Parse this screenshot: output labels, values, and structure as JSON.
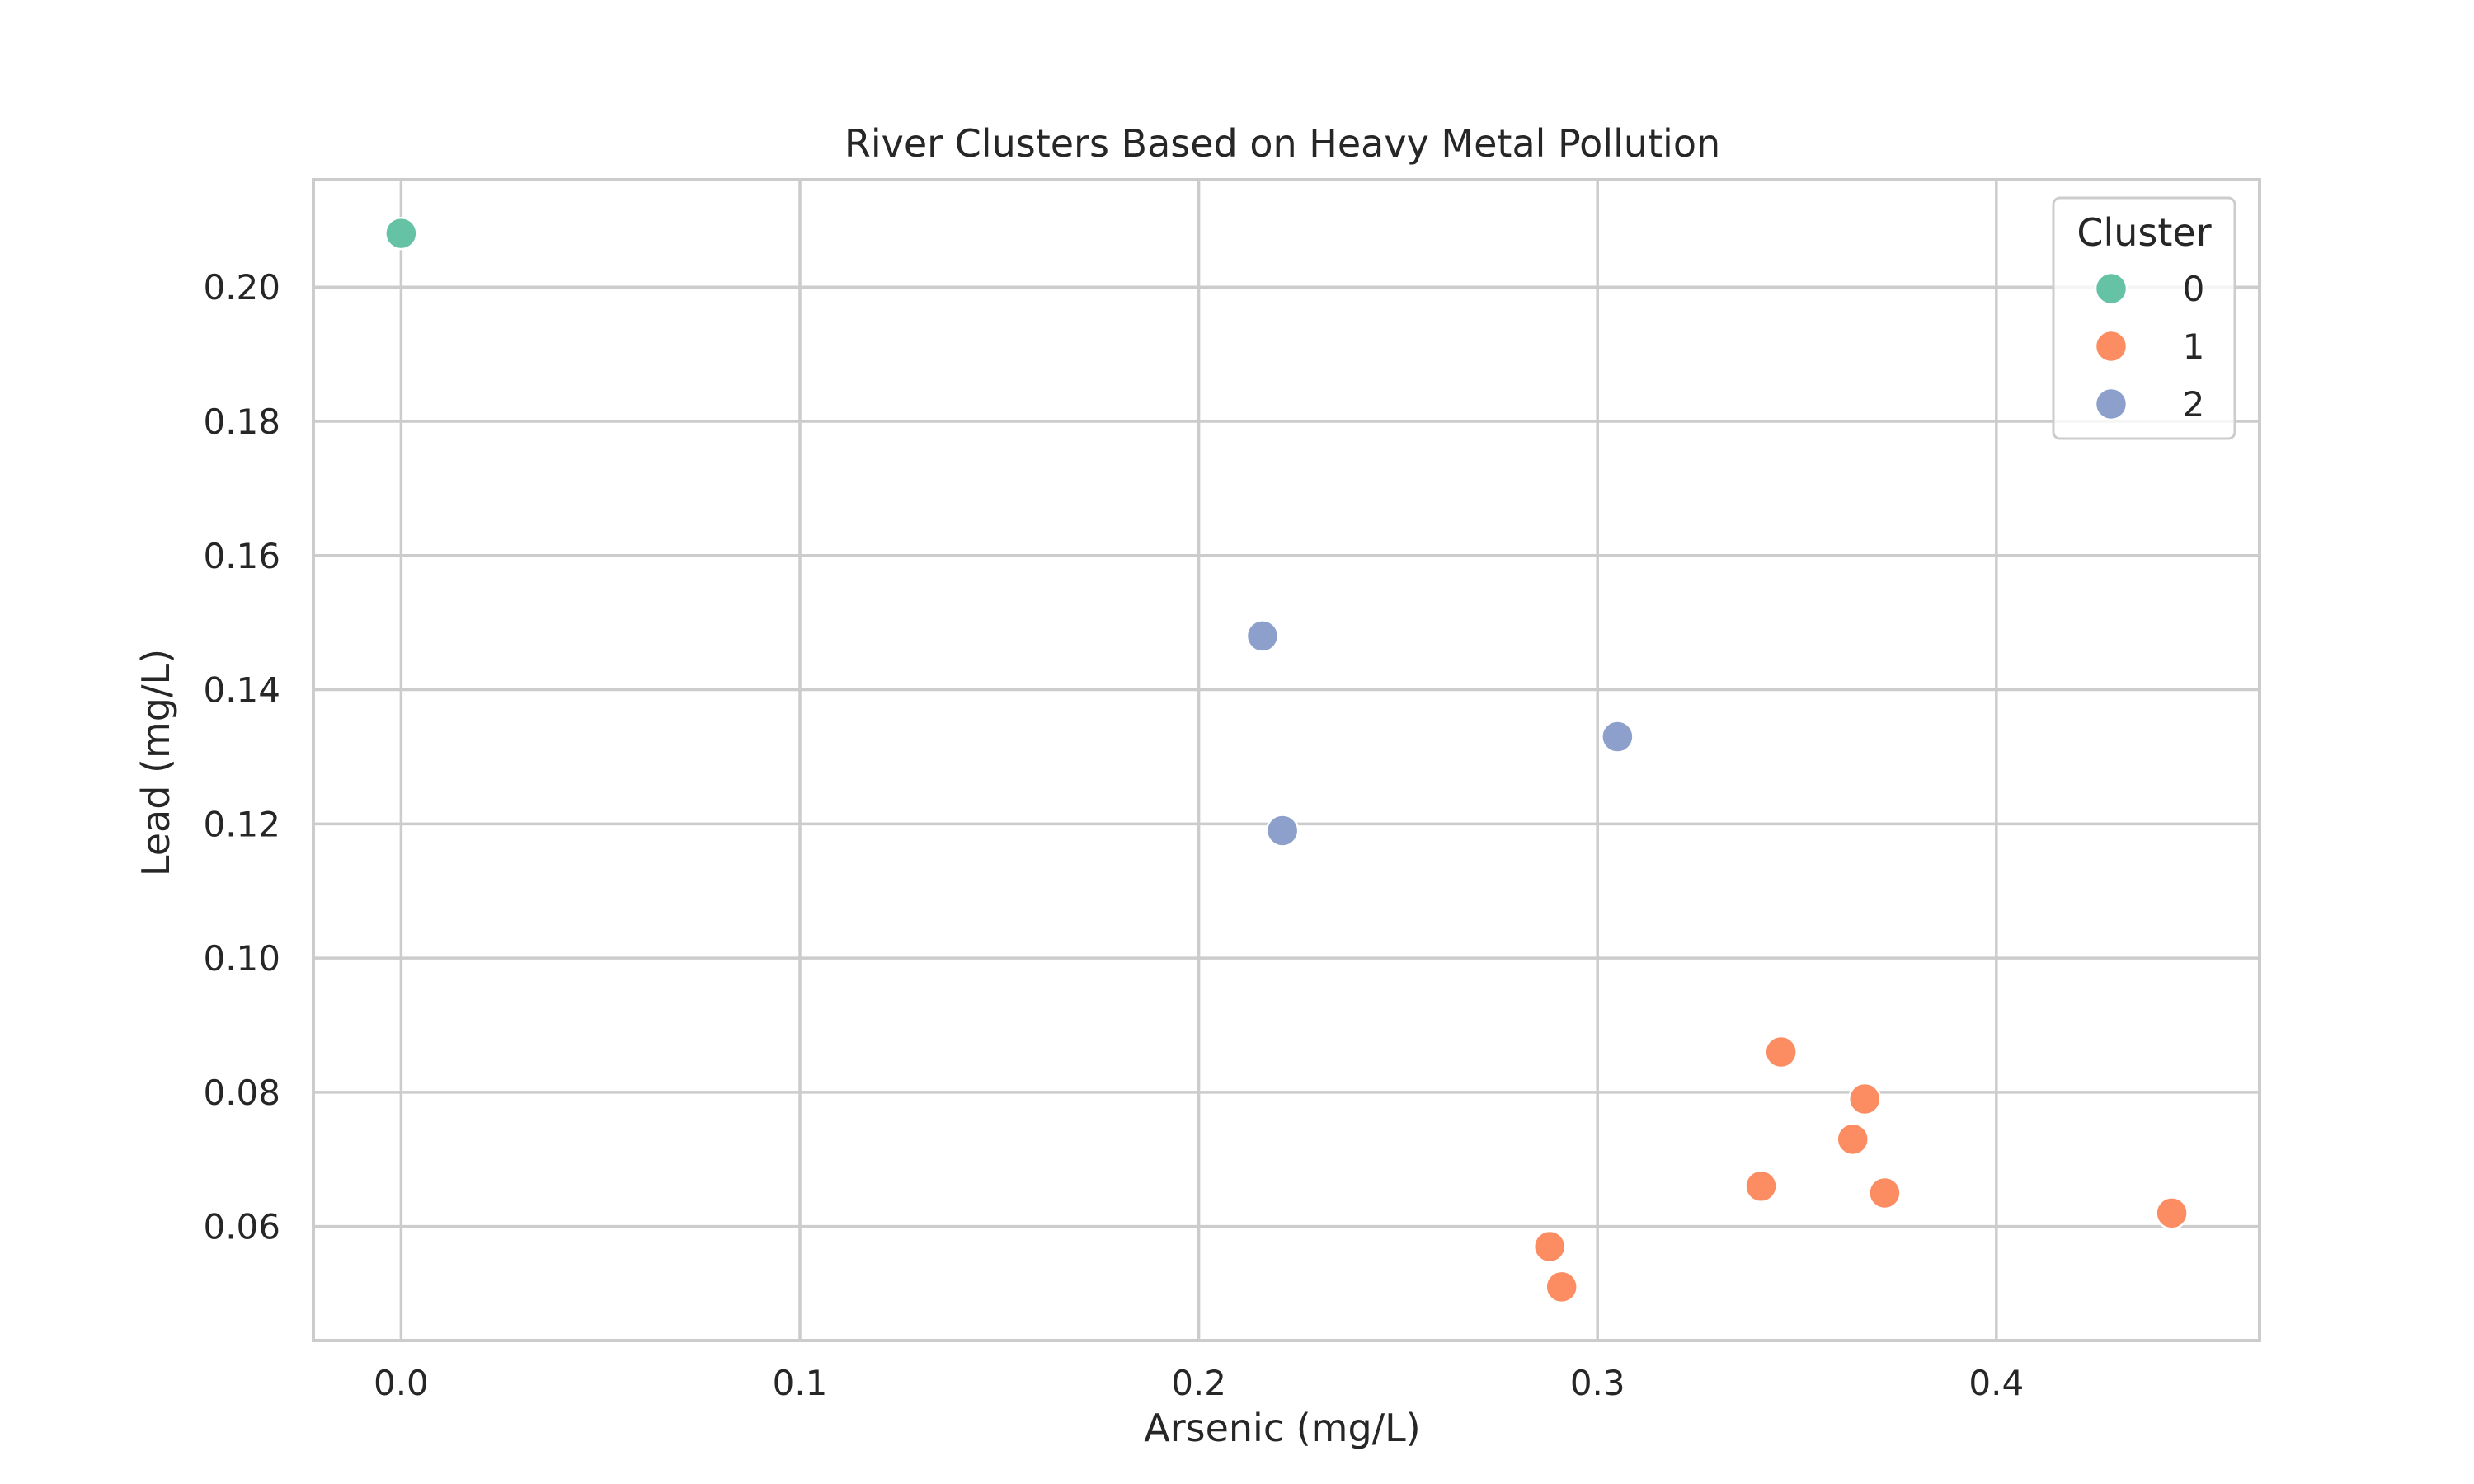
{
  "chart_data": {
    "type": "scatter",
    "title": "River Clusters Based on Heavy Metal Pollution",
    "xlabel": "Arsenic (mg/L)",
    "ylabel": "Lead (mg/L)",
    "xlim": [
      -0.022,
      0.466
    ],
    "ylim": [
      0.043,
      0.216
    ],
    "x_ticks": [
      0.0,
      0.1,
      0.2,
      0.3,
      0.4
    ],
    "x_tick_labels": [
      "0.0",
      "0.1",
      "0.2",
      "0.3",
      "0.4"
    ],
    "y_ticks": [
      0.06,
      0.08,
      0.1,
      0.12,
      0.14,
      0.16,
      0.18,
      0.2
    ],
    "y_tick_labels": [
      "0.06",
      "0.08",
      "0.10",
      "0.12",
      "0.14",
      "0.16",
      "0.18",
      "0.20"
    ],
    "grid": true,
    "legend": {
      "title": "Cluster",
      "placement": "top-right"
    },
    "series": [
      {
        "name": "0",
        "color": "#66c2a5",
        "points": [
          {
            "x": 0.0,
            "y": 0.208
          }
        ]
      },
      {
        "name": "1",
        "color": "#fc8d62",
        "points": [
          {
            "x": 0.346,
            "y": 0.086
          },
          {
            "x": 0.367,
            "y": 0.079
          },
          {
            "x": 0.364,
            "y": 0.073
          },
          {
            "x": 0.341,
            "y": 0.066
          },
          {
            "x": 0.372,
            "y": 0.065
          },
          {
            "x": 0.444,
            "y": 0.062
          },
          {
            "x": 0.288,
            "y": 0.057
          },
          {
            "x": 0.291,
            "y": 0.051
          }
        ]
      },
      {
        "name": "2",
        "color": "#8da0cb",
        "points": [
          {
            "x": 0.216,
            "y": 0.148
          },
          {
            "x": 0.305,
            "y": 0.133
          },
          {
            "x": 0.221,
            "y": 0.119
          }
        ]
      }
    ]
  },
  "colors": {
    "grid": "#cccccc",
    "frame": "#cccccc",
    "text": "#262626",
    "marker_edge": "#ffffff"
  }
}
